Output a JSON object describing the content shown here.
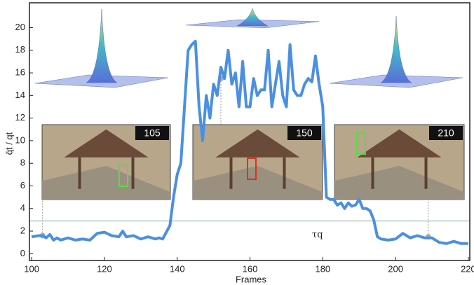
{
  "chart_data": {
    "type": "line",
    "xlabel": "Frames",
    "ylabel": "q̄t / qt",
    "x": [
      100,
      102,
      103,
      104,
      105,
      106,
      107,
      108,
      110,
      112,
      114,
      116,
      118,
      120,
      122,
      124,
      125,
      126,
      128,
      130,
      132,
      134,
      135,
      136,
      138,
      139,
      140,
      141,
      142,
      143,
      144,
      145,
      146,
      147,
      148,
      149,
      150,
      151,
      152,
      153,
      154,
      155,
      156,
      157,
      158,
      159,
      160,
      161,
      162,
      163,
      164,
      165,
      166,
      167,
      168,
      169,
      170,
      171,
      172,
      173,
      174,
      175,
      176,
      177,
      178,
      179,
      180,
      181,
      182,
      183,
      184,
      185,
      186,
      187,
      188,
      189,
      190,
      191,
      192,
      193,
      194,
      195,
      196,
      198,
      200,
      202,
      204,
      206,
      208,
      210,
      212,
      214,
      216,
      218,
      220
    ],
    "series": [
      {
        "color": "#4a90e2",
        "values": [
          1.5,
          1.6,
          1.6,
          1.4,
          1.7,
          1.2,
          1.4,
          1.2,
          1.4,
          1.2,
          1.3,
          1.2,
          1.8,
          1.9,
          1.6,
          1.5,
          2.0,
          1.5,
          1.6,
          1.3,
          1.5,
          1.3,
          1.4,
          1.3,
          2.5,
          5,
          7,
          8,
          13,
          18,
          18.5,
          18.8,
          13,
          10,
          14,
          12,
          15,
          14,
          16.5,
          15.5,
          18,
          15,
          16,
          13,
          17,
          13,
          13,
          15.5,
          14,
          14.5,
          14.5,
          18,
          13,
          15,
          17,
          14,
          13,
          18.5,
          14.5,
          14,
          14,
          15,
          15.5,
          15.2,
          17.5,
          15,
          13,
          5,
          4.8,
          4.8,
          4.3,
          4.5,
          4,
          4.5,
          4.2,
          4.3,
          4.8,
          4,
          4,
          3.8,
          3,
          1.5,
          1.3,
          1.2,
          1.3,
          1.8,
          1.4,
          1.6,
          1.4,
          1.4,
          1.0,
          0.9,
          1.1,
          0.9,
          0.9
        ]
      }
    ],
    "xlim": [
      99.4,
      220.4
    ],
    "ylim": [
      -0.6,
      22.2
    ],
    "xticks": [
      100,
      120,
      140,
      160,
      180,
      200,
      220
    ],
    "yticks": [
      0,
      2,
      4,
      6,
      8,
      10,
      12,
      14,
      16,
      18,
      20
    ],
    "threshold": {
      "value": 2.9,
      "label": "τq",
      "color": "#b8c8c8"
    },
    "callouts": [
      {
        "x": 103,
        "y": 1.6,
        "label": 105
      },
      {
        "x": 152,
        "y": 15.5,
        "label": 150
      },
      {
        "x": 209,
        "y": 1.5,
        "label": 210
      }
    ]
  }
}
